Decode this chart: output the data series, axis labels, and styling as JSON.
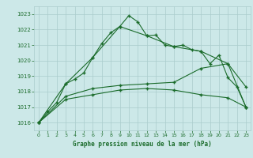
{
  "title": "Graphe pression niveau de la mer (hPa)",
  "xlim": [
    -0.5,
    23.5
  ],
  "ylim": [
    1015.5,
    1023.5
  ],
  "yticks": [
    1016,
    1017,
    1018,
    1019,
    1020,
    1021,
    1022,
    1023
  ],
  "xticks": [
    0,
    1,
    2,
    3,
    4,
    5,
    6,
    7,
    8,
    9,
    10,
    11,
    12,
    13,
    14,
    15,
    16,
    17,
    18,
    19,
    20,
    21,
    22,
    23
  ],
  "background_color": "#cce8e8",
  "grid_color": "#aacccc",
  "text_color": "#1a6b2a",
  "line_color": "#1a6b2a",
  "series1": {
    "x": [
      0,
      1,
      2,
      3,
      4,
      5,
      6,
      7,
      8,
      9,
      10,
      11,
      12,
      13,
      14,
      15,
      16,
      17,
      18,
      19,
      20,
      21,
      22,
      23
    ],
    "y": [
      1016.0,
      1016.7,
      1017.3,
      1018.5,
      1018.8,
      1019.2,
      1020.2,
      1021.1,
      1021.8,
      1022.2,
      1022.9,
      1022.5,
      1021.6,
      1021.65,
      1021.0,
      1020.9,
      1021.0,
      1020.7,
      1020.6,
      1019.8,
      1020.35,
      1018.9,
      1018.3,
      1017.0
    ]
  },
  "series2": {
    "x": [
      0,
      3,
      6,
      9,
      12,
      15,
      18,
      21,
      23
    ],
    "y": [
      1016.0,
      1018.5,
      1020.2,
      1022.2,
      1021.6,
      1020.9,
      1020.6,
      1019.8,
      1017.0
    ]
  },
  "series3": {
    "x": [
      0,
      3,
      6,
      9,
      12,
      15,
      18,
      21,
      23
    ],
    "y": [
      1016.0,
      1017.7,
      1018.2,
      1018.4,
      1018.5,
      1018.6,
      1019.5,
      1019.8,
      1018.3
    ]
  },
  "series4": {
    "x": [
      0,
      3,
      6,
      9,
      12,
      15,
      18,
      21,
      23
    ],
    "y": [
      1016.0,
      1017.5,
      1017.8,
      1018.1,
      1018.2,
      1018.1,
      1017.8,
      1017.6,
      1017.0
    ]
  }
}
